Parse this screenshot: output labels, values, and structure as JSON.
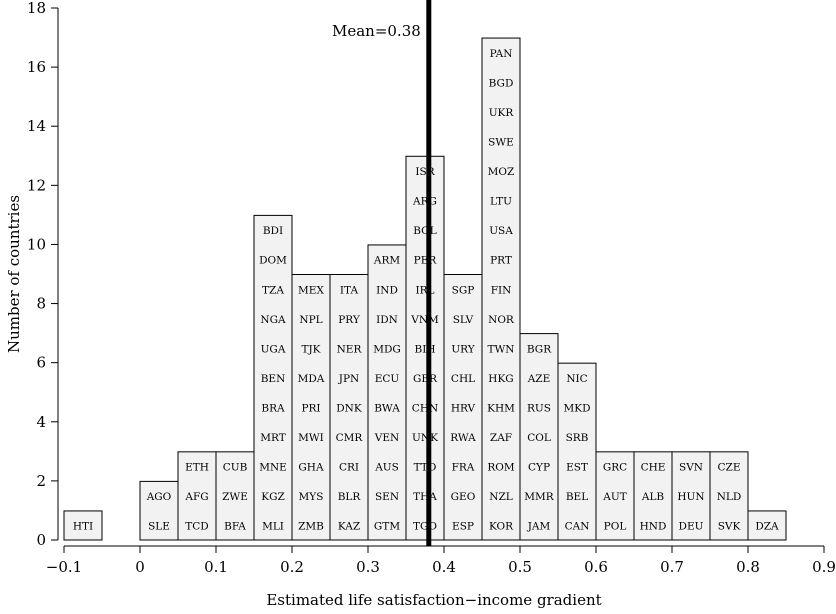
{
  "chart_data": {
    "type": "bar",
    "subtype": "histogram-dot-labels",
    "xlabel": "Estimated life satisfaction−income gradient",
    "ylabel": "Number of countries",
    "xlim": [
      -0.1,
      0.9
    ],
    "ylim": [
      0,
      18
    ],
    "xticks": [
      -0.1,
      0,
      0.1,
      0.2,
      0.3,
      0.4,
      0.5,
      0.6,
      0.7,
      0.8,
      0.9
    ],
    "xtick_labels": [
      "−0.1",
      "0",
      "0.1",
      "0.2",
      "0.3",
      "0.4",
      "0.5",
      "0.6",
      "0.7",
      "0.8",
      "0.9"
    ],
    "yticks": [
      0,
      2,
      4,
      6,
      8,
      10,
      12,
      14,
      16,
      18
    ],
    "ytick_labels": [
      "0",
      "2",
      "4",
      "6",
      "8",
      "10",
      "12",
      "14",
      "16",
      "18"
    ],
    "mean": 0.38,
    "mean_label": "Mean=0.38",
    "bin_width": 0.05,
    "bins": [
      {
        "left": -0.1,
        "countries": [
          "HTI"
        ]
      },
      {
        "left": 0.0,
        "countries": [
          "SLE",
          "AGO"
        ]
      },
      {
        "left": 0.05,
        "countries": [
          "TCD",
          "AFG",
          "ETH"
        ]
      },
      {
        "left": 0.1,
        "countries": [
          "BFA",
          "ZWE",
          "CUB"
        ]
      },
      {
        "left": 0.15,
        "countries": [
          "MLI",
          "KGZ",
          "MNE",
          "MRT",
          "BRA",
          "BEN",
          "UGA",
          "NGA",
          "TZA",
          "DOM",
          "BDI"
        ]
      },
      {
        "left": 0.2,
        "countries": [
          "ZMB",
          "MYS",
          "GHA",
          "MWI",
          "PRI",
          "MDA",
          "TJK",
          "NPL",
          "MEX"
        ]
      },
      {
        "left": 0.25,
        "countries": [
          "KAZ",
          "BLR",
          "CRI",
          "CMR",
          "DNK",
          "JPN",
          "NER",
          "PRY",
          "ITA"
        ]
      },
      {
        "left": 0.3,
        "countries": [
          "GTM",
          "SEN",
          "AUS",
          "VEN",
          "BWA",
          "ECU",
          "MDG",
          "IDN",
          "IND",
          "ARM"
        ]
      },
      {
        "left": 0.35,
        "countries": [
          "TGO",
          "THA",
          "TTO",
          "UNK",
          "CHN",
          "GBR",
          "BIH",
          "VNM",
          "IRL",
          "PER",
          "BOL",
          "ARG",
          "ISR"
        ]
      },
      {
        "left": 0.4,
        "countries": [
          "ESP",
          "GEO",
          "FRA",
          "RWA",
          "HRV",
          "CHL",
          "URY",
          "SLV",
          "SGP"
        ]
      },
      {
        "left": 0.45,
        "countries": [
          "KOR",
          "NZL",
          "ROM",
          "ZAF",
          "KHM",
          "HKG",
          "TWN",
          "NOR",
          "FIN",
          "PRT",
          "USA",
          "LTU",
          "MOZ",
          "SWE",
          "UKR",
          "BGD",
          "PAN"
        ]
      },
      {
        "left": 0.5,
        "countries": [
          "JAM",
          "MMR",
          "CYP",
          "COL",
          "RUS",
          "AZE",
          "BGR"
        ]
      },
      {
        "left": 0.55,
        "countries": [
          "CAN",
          "BEL",
          "EST",
          "SRB",
          "MKD",
          "NIC"
        ]
      },
      {
        "left": 0.6,
        "countries": [
          "POL",
          "AUT",
          "GRC"
        ]
      },
      {
        "left": 0.65,
        "countries": [
          "HND",
          "ALB",
          "CHE"
        ]
      },
      {
        "left": 0.7,
        "countries": [
          "DEU",
          "HUN",
          "SVN"
        ]
      },
      {
        "left": 0.75,
        "countries": [
          "SVK",
          "NLD",
          "CZE"
        ]
      },
      {
        "left": 0.8,
        "countries": [
          "DZA"
        ]
      }
    ]
  }
}
